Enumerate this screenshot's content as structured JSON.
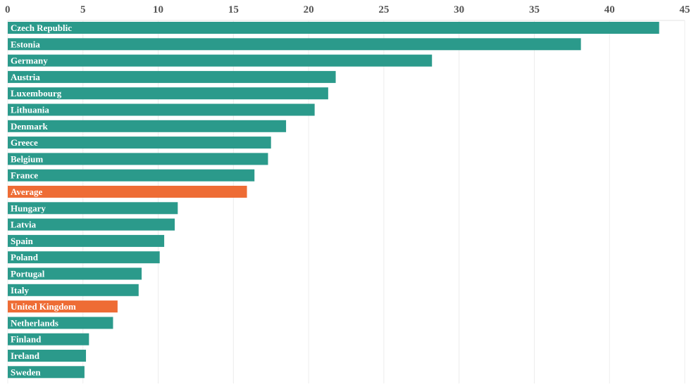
{
  "chart_data": {
    "type": "bar",
    "orientation": "horizontal",
    "title": "",
    "xlabel": "",
    "ylabel": "",
    "x_ticks": [
      0,
      5,
      10,
      15,
      20,
      25,
      30,
      35,
      40,
      45
    ],
    "xlim": [
      0,
      45
    ],
    "grid": true,
    "x_axis_position": "top",
    "labels_inside_bars": true,
    "colors": {
      "default": "#2b9a8b",
      "highlight": "#ee6c35"
    },
    "bars": [
      {
        "label": "Czech Republic",
        "value": 43.3,
        "highlight": false
      },
      {
        "label": "Estonia",
        "value": 38.1,
        "highlight": false
      },
      {
        "label": "Germany",
        "value": 28.2,
        "highlight": false
      },
      {
        "label": "Austria",
        "value": 21.8,
        "highlight": false
      },
      {
        "label": "Luxembourg",
        "value": 21.3,
        "highlight": false
      },
      {
        "label": "Lithuania",
        "value": 20.4,
        "highlight": false
      },
      {
        "label": "Denmark",
        "value": 18.5,
        "highlight": false
      },
      {
        "label": "Greece",
        "value": 17.5,
        "highlight": false
      },
      {
        "label": "Belgium",
        "value": 17.3,
        "highlight": false
      },
      {
        "label": "France",
        "value": 16.4,
        "highlight": false
      },
      {
        "label": "Average",
        "value": 15.9,
        "highlight": true
      },
      {
        "label": "Hungary",
        "value": 11.3,
        "highlight": false
      },
      {
        "label": "Latvia",
        "value": 11.1,
        "highlight": false
      },
      {
        "label": "Spain",
        "value": 10.4,
        "highlight": false
      },
      {
        "label": "Poland",
        "value": 10.1,
        "highlight": false
      },
      {
        "label": "Portugal",
        "value": 8.9,
        "highlight": false
      },
      {
        "label": "Italy",
        "value": 8.7,
        "highlight": false
      },
      {
        "label": "United Kingdom",
        "value": 7.3,
        "highlight": true
      },
      {
        "label": "Netherlands",
        "value": 7.0,
        "highlight": false
      },
      {
        "label": "Finland",
        "value": 5.4,
        "highlight": false
      },
      {
        "label": "Ireland",
        "value": 5.2,
        "highlight": false
      },
      {
        "label": "Sweden",
        "value": 5.1,
        "highlight": false
      }
    ]
  }
}
